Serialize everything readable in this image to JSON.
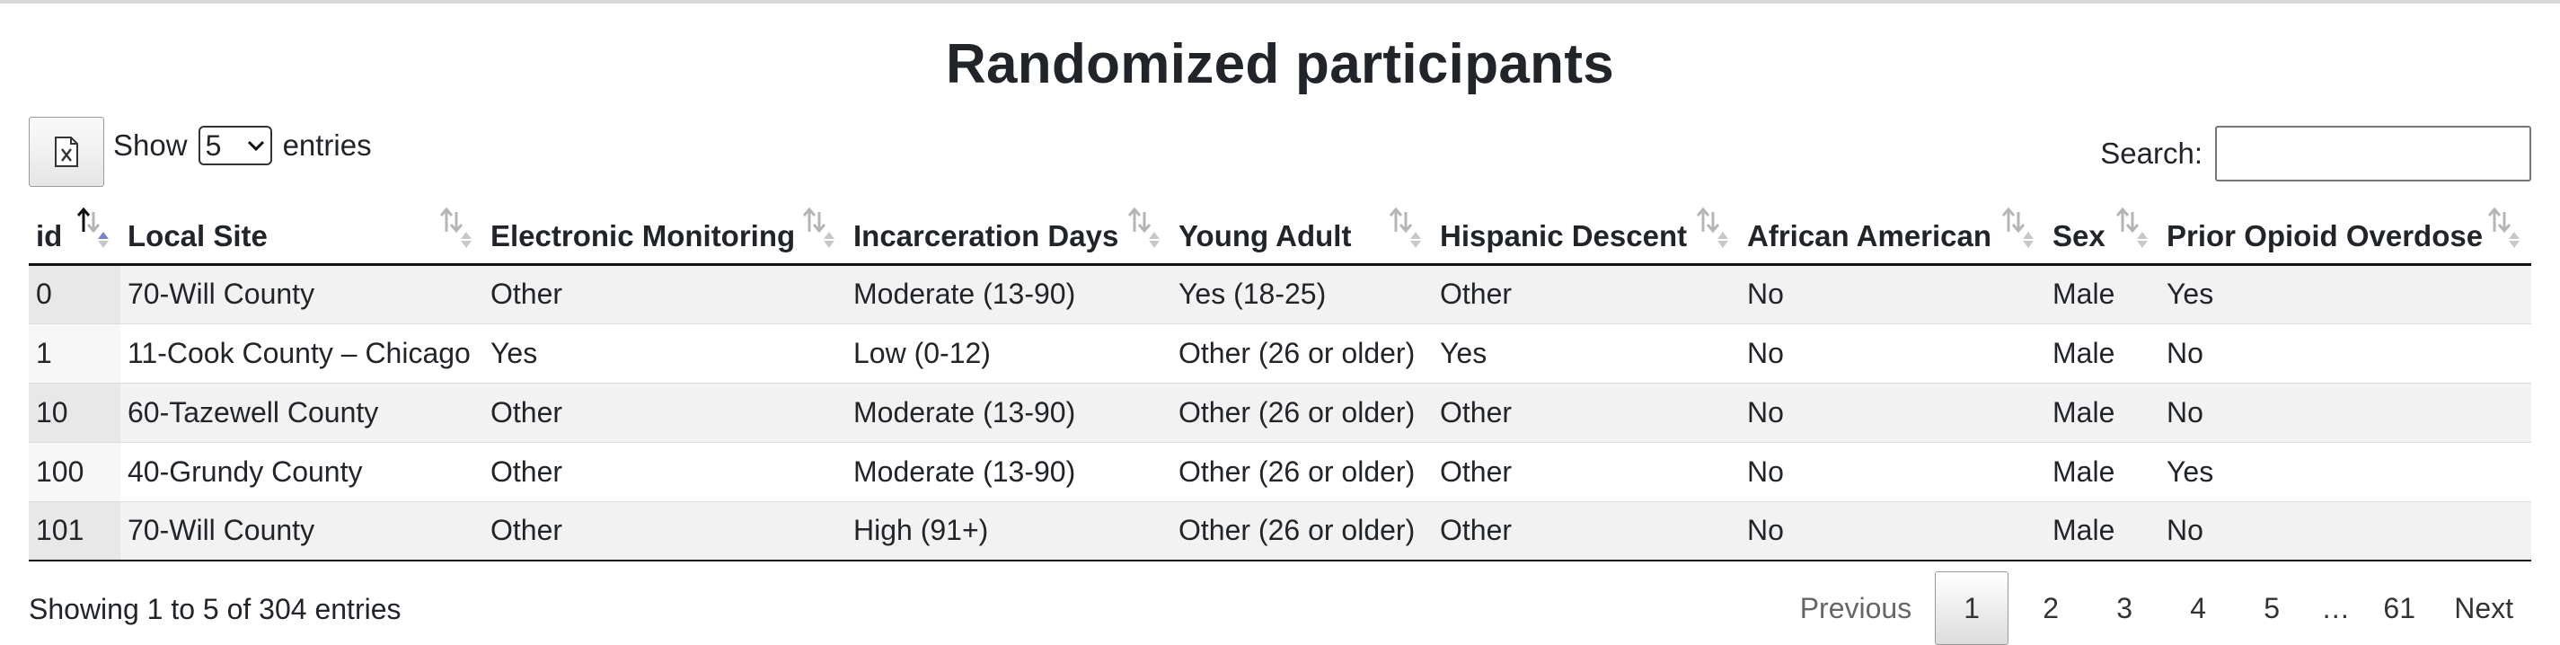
{
  "title": "Randomized participants",
  "toolbar": {
    "excel_icon": "excel-export-icon",
    "show_label": "Show",
    "page_size": "5",
    "entries_label": "entries",
    "search_label": "Search:",
    "search_value": ""
  },
  "table": {
    "columns": [
      "id",
      "Local Site",
      "Electronic Monitoring",
      "Incarceration Days",
      "Young Adult",
      "Hispanic Descent",
      "African American",
      "Sex",
      "Prior Opioid Overdose"
    ],
    "sorted_column": "id",
    "sort_direction": "ascending",
    "rows": [
      [
        "0",
        "70-Will County",
        "Other",
        "Moderate (13-90)",
        "Yes (18-25)",
        "Other",
        "No",
        "Male",
        "Yes"
      ],
      [
        "1",
        "11-Cook County – Chicago",
        "Yes",
        "Low (0-12)",
        "Other (26 or older)",
        "Yes",
        "No",
        "Male",
        "No"
      ],
      [
        "10",
        "60-Tazewell County",
        "Other",
        "Moderate (13-90)",
        "Other (26 or older)",
        "Other",
        "No",
        "Male",
        "No"
      ],
      [
        "100",
        "40-Grundy County",
        "Other",
        "Moderate (13-90)",
        "Other (26 or older)",
        "Other",
        "No",
        "Male",
        "Yes"
      ],
      [
        "101",
        "70-Will County",
        "Other",
        "High (91+)",
        "Other (26 or older)",
        "Other",
        "No",
        "Male",
        "No"
      ]
    ]
  },
  "info": "Showing 1 to 5 of 304 entries",
  "pagination": {
    "previous": "Previous",
    "pages": [
      "1",
      "2",
      "3",
      "4",
      "5",
      "…",
      "61"
    ],
    "current": "1",
    "next": "Next"
  },
  "colors": {
    "sort_active": "#7b82c9",
    "sort_inactive": "#c8c8c8"
  }
}
